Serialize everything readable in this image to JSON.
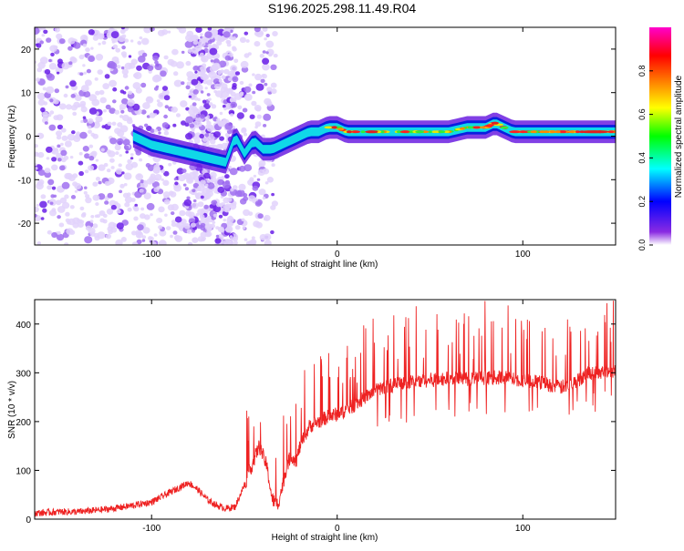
{
  "title": "S196.2025.298.11.49.R04",
  "chart_data": [
    {
      "type": "heatmap",
      "xlabel": "Height of straight line (km)",
      "ylabel": "Frequency (Hz)",
      "xlim": [
        -163,
        150
      ],
      "ylim": [
        -25,
        25
      ],
      "xticks": [
        -100,
        0,
        100
      ],
      "yticks": [
        -20,
        -10,
        0,
        10,
        20
      ],
      "colorbar": {
        "label": "Normalized spectral amplitude",
        "range": [
          0,
          1
        ],
        "ticks": [
          0.0,
          0.2,
          0.4,
          0.6,
          0.8
        ],
        "tick_labels": [
          "0.0",
          "0.2",
          "0.4",
          "0.6",
          "0.8"
        ],
        "colors": [
          "#ffffff",
          "#7f00ff",
          "#0000ff",
          "#00ffff",
          "#00ff00",
          "#ffff00",
          "#ff8000",
          "#ff0000",
          "#ff00ff"
        ]
      },
      "ridge": {
        "x": [
          -110,
          -100,
          -90,
          -80,
          -70,
          -60,
          -55,
          -50,
          -45,
          -40,
          -35,
          -30,
          -25,
          -20,
          -15,
          -10,
          -5,
          0,
          5,
          10,
          15,
          20,
          30,
          40,
          50,
          60,
          70,
          80,
          85,
          90,
          95,
          100,
          110,
          120,
          130,
          140,
          150
        ],
        "freq_hz": [
          0,
          -2,
          -3,
          -4,
          -5,
          -6,
          0,
          -4,
          -1,
          -3,
          -3,
          -2,
          -1,
          0,
          1,
          1,
          2,
          2,
          1,
          1,
          1,
          1,
          1,
          1,
          1,
          1,
          2,
          2,
          3,
          2,
          1,
          1,
          1,
          1,
          1,
          1,
          1
        ]
      }
    },
    {
      "type": "line",
      "xlabel": "Height of straight line (km)",
      "ylabel": "SNR (10 * v/v)",
      "xlim": [
        -163,
        150
      ],
      "ylim": [
        0,
        450
      ],
      "xticks": [
        -100,
        0,
        100
      ],
      "yticks": [
        0,
        100,
        200,
        300,
        400
      ],
      "color": "#ee2222",
      "series": [
        {
          "name": "SNR",
          "x": [
            -163,
            -150,
            -140,
            -130,
            -120,
            -110,
            -100,
            -95,
            -90,
            -85,
            -80,
            -75,
            -70,
            -65,
            -60,
            -55,
            -50,
            -45,
            -42,
            -38,
            -35,
            -32,
            -30,
            -27,
            -25,
            -22,
            -20,
            -15,
            -10,
            -5,
            0,
            5,
            10,
            15,
            20,
            25,
            30,
            40,
            50,
            60,
            70,
            80,
            90,
            100,
            110,
            115,
            120,
            125,
            130,
            135,
            140,
            145,
            150
          ],
          "values": [
            12,
            15,
            15,
            18,
            22,
            28,
            35,
            45,
            55,
            65,
            75,
            60,
            40,
            28,
            22,
            25,
            70,
            120,
            150,
            110,
            40,
            30,
            60,
            110,
            130,
            120,
            150,
            190,
            200,
            210,
            215,
            225,
            235,
            250,
            262,
            270,
            275,
            282,
            285,
            288,
            288,
            290,
            290,
            285,
            280,
            275,
            270,
            275,
            285,
            300,
            300,
            305,
            305
          ]
        }
      ]
    }
  ]
}
